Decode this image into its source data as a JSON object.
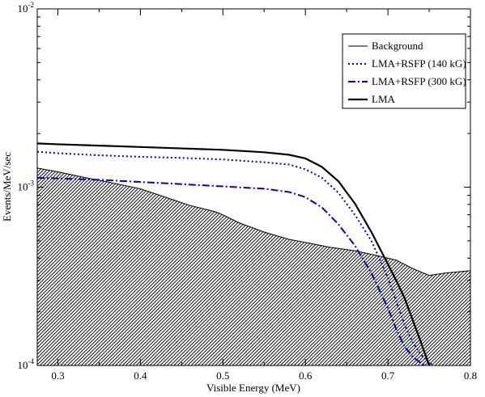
{
  "chart_data": {
    "type": "line",
    "title": "",
    "xlabel": "Visible Energy (MeV)",
    "ylabel": "Events/MeV/sec",
    "xlim": [
      0.275,
      0.8
    ],
    "ylim": [
      0.0001,
      0.01
    ],
    "yscale": "log",
    "x_ticks": [
      0.3,
      0.4,
      0.5,
      0.6,
      0.7,
      0.8
    ],
    "x_tick_labels": [
      "0.3",
      "0.4",
      "0.5",
      "0.6",
      "0.7",
      "0.8"
    ],
    "y_major_ticks": [
      {
        "value": 0.0001,
        "base": "10",
        "exp": "-4"
      },
      {
        "value": 0.001,
        "base": "10",
        "exp": "-3"
      },
      {
        "value": 0.01,
        "base": "10",
        "exp": "-2"
      }
    ],
    "grid": false,
    "legend_position": "top-right",
    "series": [
      {
        "name": "Background",
        "style": "hatched-area",
        "color": "#000000",
        "x": [
          0.275,
          0.3,
          0.33,
          0.36,
          0.4,
          0.43,
          0.46,
          0.49,
          0.5,
          0.52,
          0.55,
          0.58,
          0.6,
          0.63,
          0.66,
          0.69,
          0.71,
          0.73,
          0.75,
          0.77,
          0.8
        ],
        "y": [
          0.00128,
          0.00122,
          0.00114,
          0.00107,
          0.00098,
          0.00088,
          0.00079,
          0.00073,
          0.0007,
          0.00063,
          0.00056,
          0.00051,
          0.00049,
          0.00046,
          0.00044,
          0.00041,
          0.00039,
          0.00035,
          0.00032,
          0.00033,
          0.00034
        ]
      },
      {
        "name": "LMA+RSFP (140 kG)",
        "style": "dotted",
        "color": "#0000cc",
        "x": [
          0.275,
          0.3,
          0.35,
          0.4,
          0.45,
          0.5,
          0.55,
          0.58,
          0.6,
          0.62,
          0.64,
          0.66,
          0.68,
          0.7,
          0.71,
          0.72,
          0.73,
          0.74,
          0.75,
          0.755
        ],
        "y": [
          0.00158,
          0.00155,
          0.00151,
          0.00148,
          0.00146,
          0.00143,
          0.00138,
          0.00134,
          0.00126,
          0.00113,
          0.00093,
          0.0007,
          0.0005,
          0.00031,
          0.00023,
          0.00017,
          0.000135,
          0.000115,
          0.000104,
          0.0001
        ]
      },
      {
        "name": "LMA+RSFP (300 kG)",
        "style": "dash-dot",
        "color": "#0000cc",
        "x": [
          0.275,
          0.3,
          0.35,
          0.4,
          0.45,
          0.5,
          0.55,
          0.58,
          0.6,
          0.62,
          0.64,
          0.66,
          0.68,
          0.7,
          0.71,
          0.72,
          0.73,
          0.74,
          0.745
        ],
        "y": [
          0.00113,
          0.00112,
          0.0011,
          0.00107,
          0.00104,
          0.00101,
          0.00098,
          0.00094,
          0.00088,
          0.00077,
          0.00062,
          0.00047,
          0.00033,
          0.00021,
          0.00016,
          0.000128,
          0.000112,
          0.000103,
          0.0001
        ]
      },
      {
        "name": "LMA",
        "style": "solid-thick",
        "color": "#000000",
        "x": [
          0.275,
          0.3,
          0.35,
          0.4,
          0.45,
          0.5,
          0.55,
          0.58,
          0.6,
          0.62,
          0.64,
          0.66,
          0.68,
          0.7,
          0.71,
          0.72,
          0.73,
          0.74,
          0.75
        ],
        "y": [
          0.00176,
          0.00174,
          0.00171,
          0.00168,
          0.00165,
          0.00162,
          0.00157,
          0.00152,
          0.00145,
          0.0013,
          0.00108,
          0.00081,
          0.00056,
          0.00037,
          0.0003,
          0.00024,
          0.00018,
          0.000135,
          0.0001
        ]
      }
    ]
  }
}
